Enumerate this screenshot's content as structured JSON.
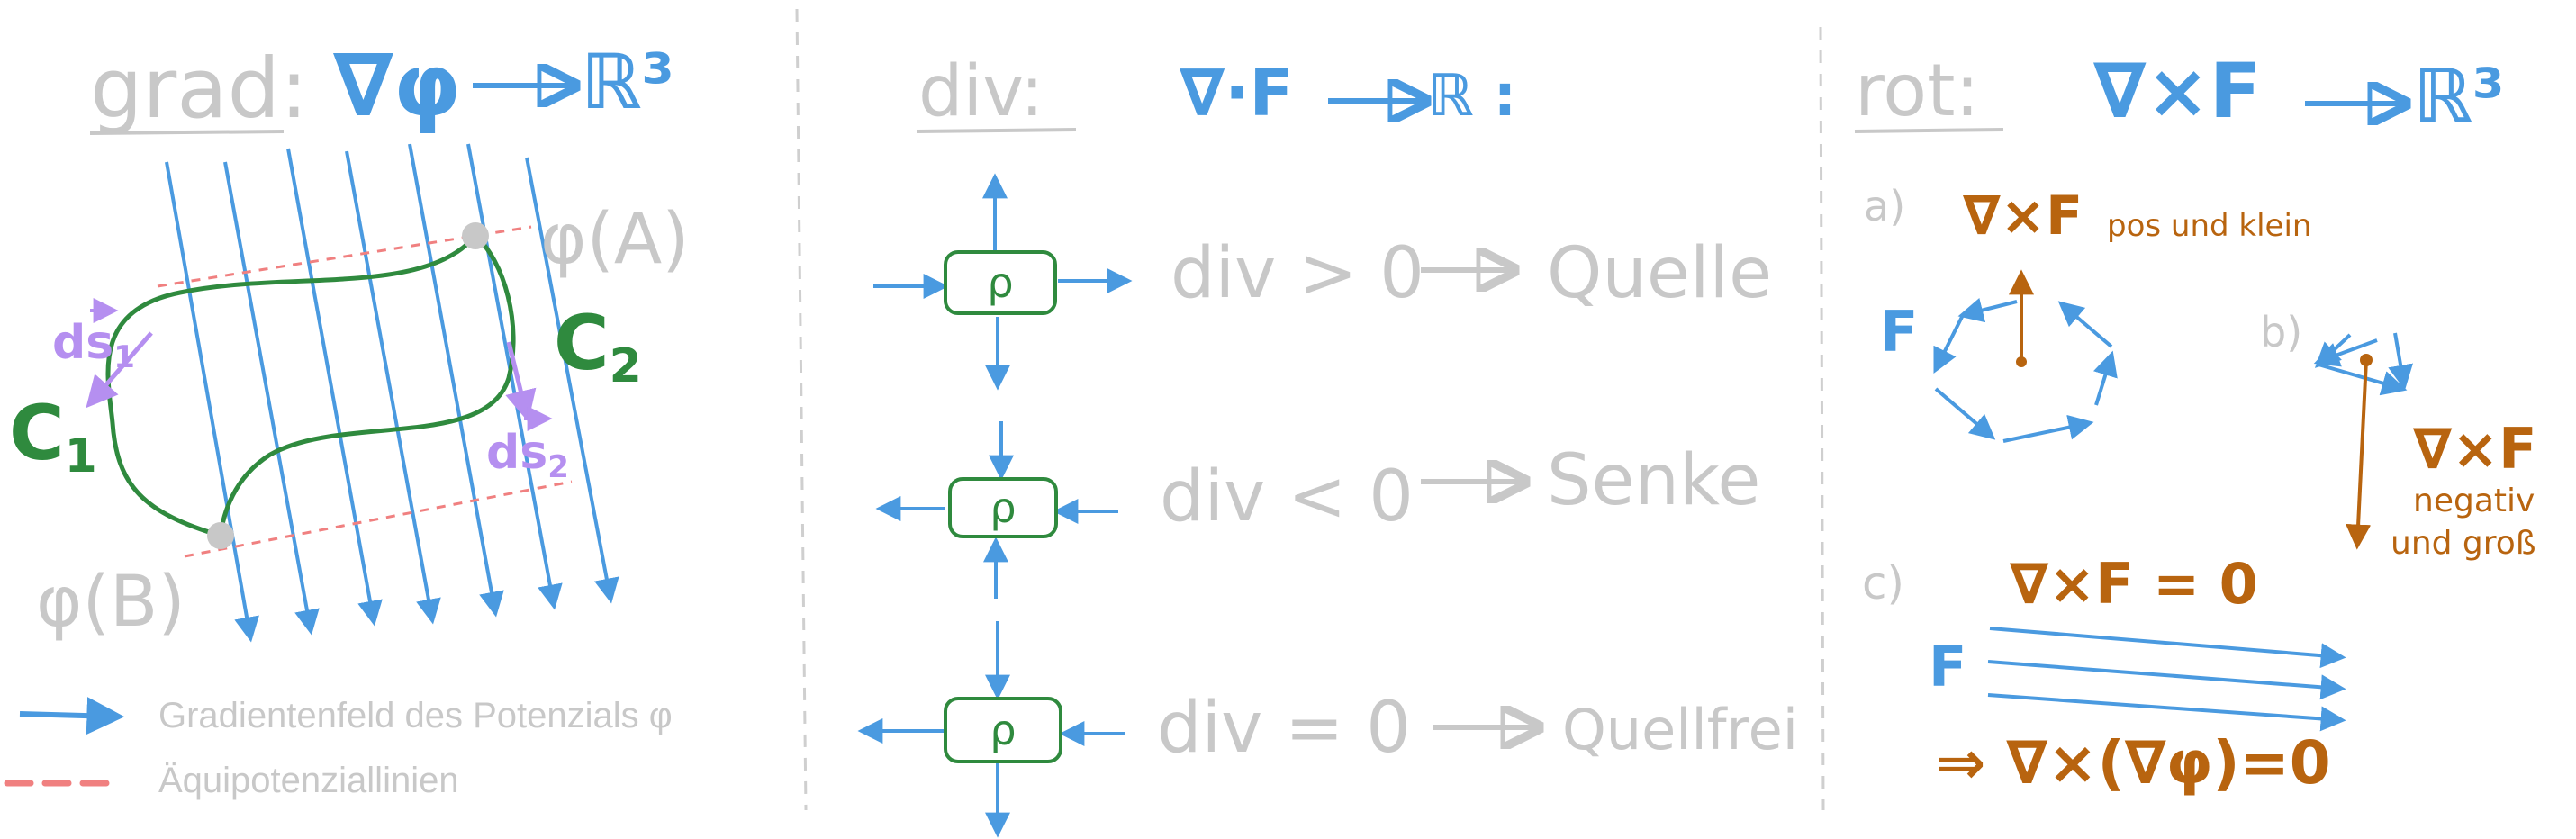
{
  "colors": {
    "blue": "#4a9ae0",
    "green": "#2f8a3e",
    "purple": "#b58ff0",
    "orange": "#b8640f",
    "gray": "#c8c8c8",
    "red_dashed": "#f08080",
    "divider": "#cfcfcf"
  },
  "grad": {
    "title": "grad:",
    "formula_nabla": "∇φ",
    "formula_target": "ℝ³",
    "phi_a": "φ(A)",
    "phi_b": "φ(B)",
    "c1": "C",
    "c1_sub": "1",
    "c2": "C",
    "c2_sub": "2",
    "ds1": "ds",
    "ds1_sub": "1",
    "ds2": "ds",
    "ds2_sub": "2",
    "legend": [
      {
        "label": "Gradientenfeld des Potenzials φ",
        "style": "arrow",
        "color": "#4a9ae0"
      },
      {
        "label": "Äquipotenziallinien",
        "style": "dashed",
        "color": "#f08080"
      }
    ]
  },
  "div": {
    "title": "div:",
    "formula": "∇·F",
    "formula_target": "ℝ :",
    "rho": "ρ",
    "rows": [
      {
        "condition": "div > 0",
        "result": "Quelle"
      },
      {
        "condition": "div < 0",
        "result": "Senke"
      },
      {
        "condition": "div = 0",
        "result": "Quellfrei"
      }
    ]
  },
  "rot": {
    "title": "rot:",
    "formula": "∇×F",
    "formula_target": "ℝ³",
    "case_a": "a)",
    "case_b": "b)",
    "case_c": "c)",
    "a_label": "∇×F",
    "a_note": "pos und klein",
    "b_label": "∇×F",
    "b_note_1": "negativ",
    "b_note_2": "und groß",
    "c_label": "∇×F = 0",
    "f_label": "F",
    "conclusion": "⇒ ∇×(∇φ)=0"
  }
}
